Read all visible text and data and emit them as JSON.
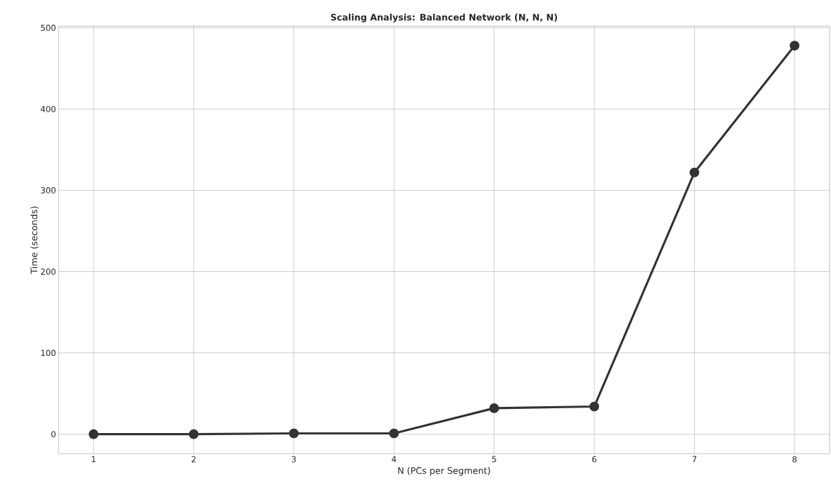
{
  "chart_data": {
    "type": "line",
    "title": "Scaling Analysis: Balanced Network (N, N, N)",
    "xlabel": "N (PCs per Segment)",
    "ylabel": "Time (seconds)",
    "x": [
      1,
      2,
      3,
      4,
      5,
      6,
      7,
      8
    ],
    "series": [
      {
        "color": "#333333",
        "values": [
          0,
          0,
          1,
          1,
          32,
          34,
          322,
          478
        ]
      }
    ],
    "xlim": [
      0.65,
      8.35
    ],
    "ylim": [
      -24,
      502
    ],
    "xticks": [
      1,
      2,
      3,
      4,
      5,
      6,
      7,
      8
    ],
    "yticks": [
      0,
      100,
      200,
      300,
      400,
      500
    ],
    "grid": true,
    "marker": "circle",
    "line_style": "solid"
  }
}
